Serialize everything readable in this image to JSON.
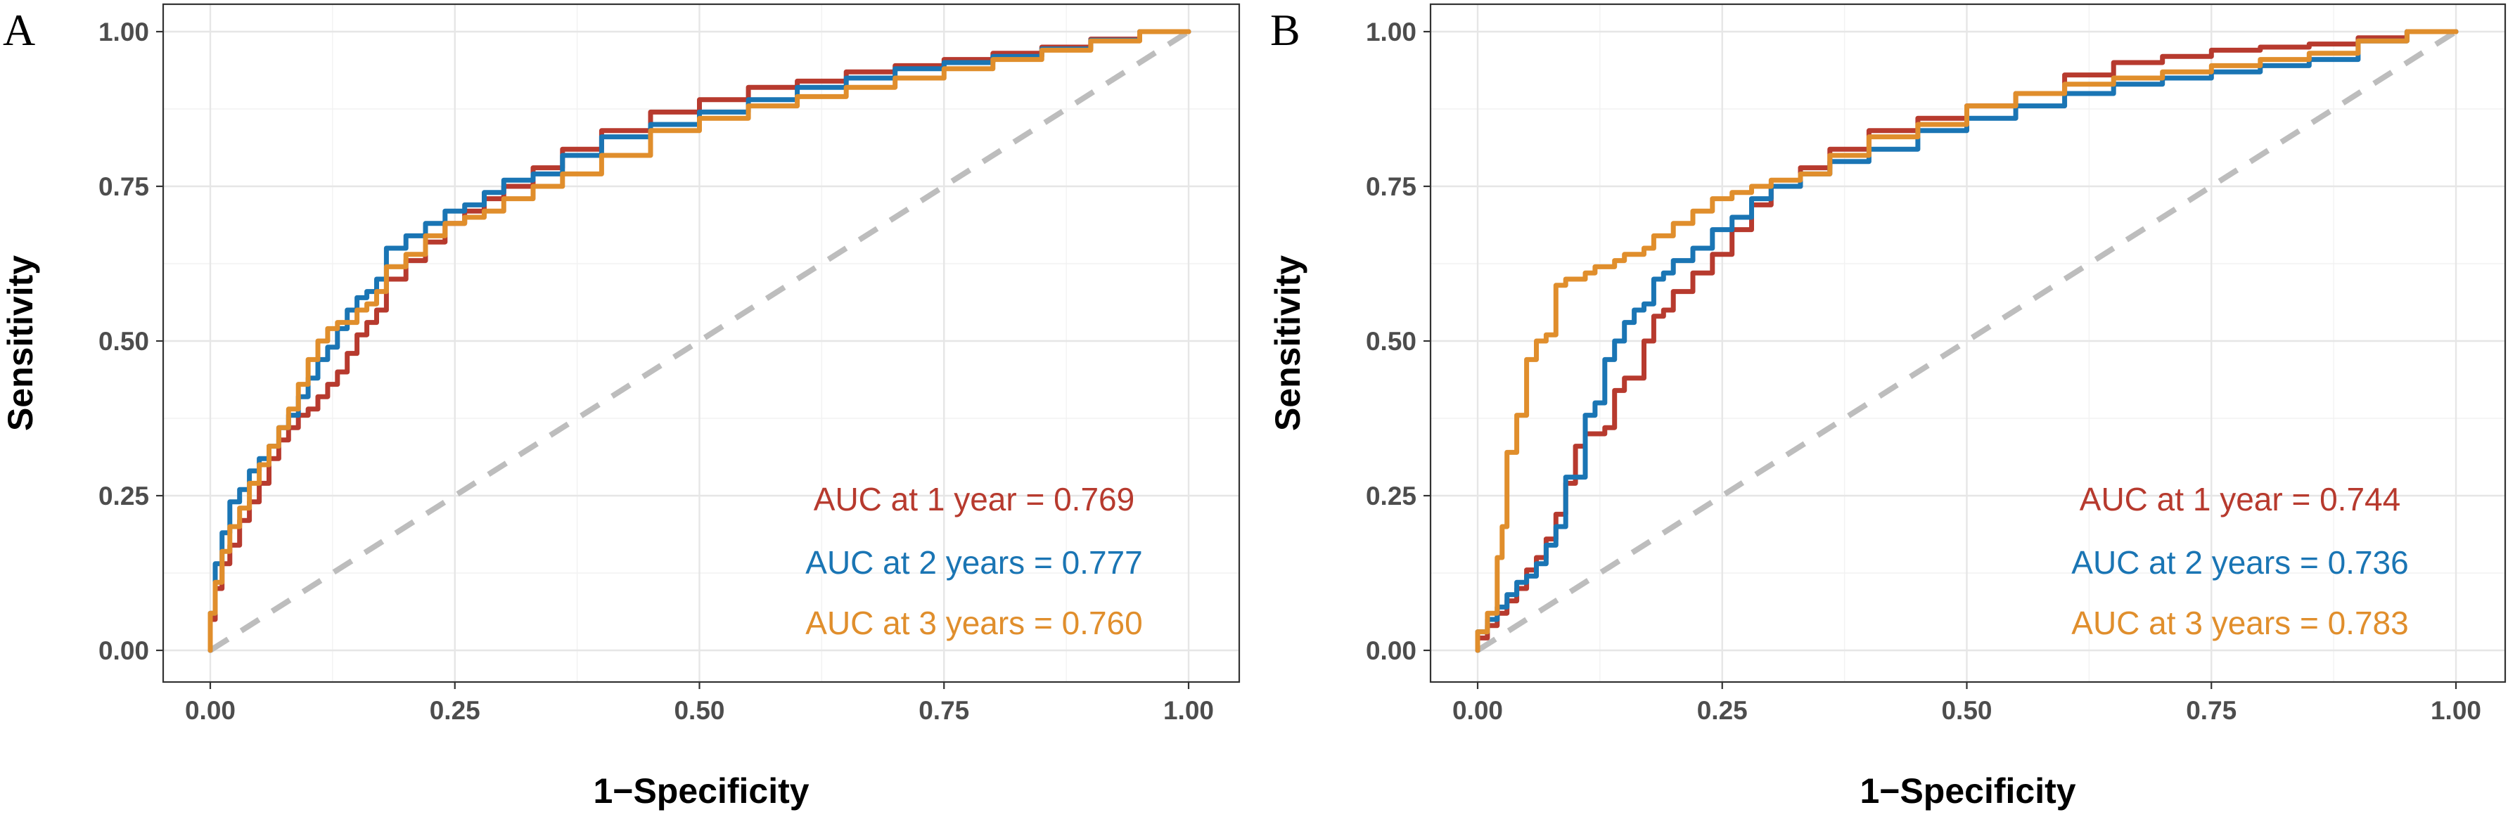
{
  "chart_data": [
    {
      "panel_letter": "A",
      "type": "line",
      "xlabel": "1−Specificity",
      "ylabel": "Sensitivity",
      "xlim": [
        0,
        1
      ],
      "ylim": [
        0,
        1
      ],
      "x_ticks": [
        "0.00",
        "0.25",
        "0.50",
        "0.75",
        "1.00"
      ],
      "y_ticks": [
        "0.00",
        "0.25",
        "0.50",
        "0.75",
        "1.00"
      ],
      "grid": true,
      "reference_line": [
        [
          0,
          0
        ],
        [
          1,
          1
        ]
      ],
      "legend_position": "bottom-right",
      "series": [
        {
          "name": "1 year",
          "color": "#B73A2E",
          "label": "AUC at 1 year = 0.769",
          "auc": 0.769,
          "x": [
            0,
            0.005,
            0.012,
            0.02,
            0.03,
            0.04,
            0.05,
            0.06,
            0.07,
            0.08,
            0.09,
            0.1,
            0.11,
            0.12,
            0.13,
            0.14,
            0.15,
            0.16,
            0.17,
            0.18,
            0.2,
            0.22,
            0.24,
            0.26,
            0.28,
            0.3,
            0.33,
            0.36,
            0.4,
            0.45,
            0.5,
            0.55,
            0.6,
            0.65,
            0.7,
            0.75,
            0.8,
            0.85,
            0.9,
            0.95,
            1.0
          ],
          "y": [
            0,
            0.05,
            0.1,
            0.14,
            0.17,
            0.21,
            0.24,
            0.27,
            0.31,
            0.34,
            0.36,
            0.38,
            0.39,
            0.41,
            0.43,
            0.45,
            0.48,
            0.51,
            0.53,
            0.55,
            0.6,
            0.63,
            0.66,
            0.69,
            0.71,
            0.73,
            0.75,
            0.78,
            0.81,
            0.84,
            0.87,
            0.89,
            0.91,
            0.92,
            0.935,
            0.945,
            0.955,
            0.965,
            0.975,
            0.988,
            1.0
          ]
        },
        {
          "name": "2 years",
          "color": "#1A75B4",
          "label": "AUC at 2 years = 0.777",
          "auc": 0.777,
          "x": [
            0,
            0.005,
            0.012,
            0.02,
            0.03,
            0.04,
            0.05,
            0.06,
            0.07,
            0.08,
            0.09,
            0.1,
            0.11,
            0.12,
            0.13,
            0.14,
            0.15,
            0.16,
            0.17,
            0.18,
            0.2,
            0.22,
            0.24,
            0.26,
            0.28,
            0.3,
            0.33,
            0.36,
            0.4,
            0.45,
            0.5,
            0.55,
            0.6,
            0.65,
            0.7,
            0.75,
            0.8,
            0.85,
            0.9,
            0.95,
            1.0
          ],
          "y": [
            0,
            0.06,
            0.14,
            0.19,
            0.24,
            0.26,
            0.29,
            0.31,
            0.33,
            0.36,
            0.38,
            0.41,
            0.44,
            0.47,
            0.49,
            0.52,
            0.55,
            0.57,
            0.58,
            0.6,
            0.65,
            0.67,
            0.69,
            0.71,
            0.72,
            0.74,
            0.76,
            0.77,
            0.8,
            0.83,
            0.85,
            0.87,
            0.89,
            0.91,
            0.925,
            0.94,
            0.95,
            0.96,
            0.972,
            0.986,
            1.0
          ]
        },
        {
          "name": "3 years",
          "color": "#E08E2C",
          "label": "AUC at 3 years = 0.760",
          "auc": 0.76,
          "x": [
            0,
            0.005,
            0.012,
            0.02,
            0.03,
            0.04,
            0.05,
            0.06,
            0.07,
            0.08,
            0.09,
            0.1,
            0.11,
            0.12,
            0.13,
            0.14,
            0.15,
            0.16,
            0.17,
            0.18,
            0.2,
            0.22,
            0.24,
            0.26,
            0.28,
            0.3,
            0.33,
            0.36,
            0.4,
            0.45,
            0.5,
            0.55,
            0.6,
            0.65,
            0.7,
            0.75,
            0.8,
            0.85,
            0.9,
            0.95,
            1.0
          ],
          "y": [
            0,
            0.06,
            0.11,
            0.16,
            0.2,
            0.23,
            0.27,
            0.3,
            0.33,
            0.36,
            0.39,
            0.43,
            0.47,
            0.5,
            0.52,
            0.53,
            0.53,
            0.55,
            0.56,
            0.58,
            0.62,
            0.64,
            0.67,
            0.69,
            0.7,
            0.71,
            0.73,
            0.75,
            0.77,
            0.8,
            0.84,
            0.86,
            0.88,
            0.895,
            0.91,
            0.925,
            0.94,
            0.955,
            0.97,
            0.985,
            1.0
          ]
        }
      ]
    },
    {
      "panel_letter": "B",
      "type": "line",
      "xlabel": "1−Specificity",
      "ylabel": "Sensitivity",
      "xlim": [
        0,
        1
      ],
      "ylim": [
        0,
        1
      ],
      "x_ticks": [
        "0.00",
        "0.25",
        "0.50",
        "0.75",
        "1.00"
      ],
      "y_ticks": [
        "0.00",
        "0.25",
        "0.50",
        "0.75",
        "1.00"
      ],
      "grid": true,
      "reference_line": [
        [
          0,
          0
        ],
        [
          1,
          1
        ]
      ],
      "legend_position": "bottom-right",
      "series": [
        {
          "name": "1 year",
          "color": "#B73A2E",
          "label": "AUC at 1 year = 0.744",
          "auc": 0.744,
          "x": [
            0,
            0.01,
            0.02,
            0.03,
            0.04,
            0.05,
            0.06,
            0.07,
            0.08,
            0.09,
            0.1,
            0.11,
            0.12,
            0.13,
            0.14,
            0.15,
            0.16,
            0.17,
            0.18,
            0.19,
            0.2,
            0.22,
            0.24,
            0.26,
            0.28,
            0.3,
            0.33,
            0.36,
            0.4,
            0.45,
            0.5,
            0.55,
            0.6,
            0.65,
            0.7,
            0.75,
            0.8,
            0.85,
            0.9,
            0.95,
            1.0
          ],
          "y": [
            0,
            0.02,
            0.04,
            0.06,
            0.08,
            0.1,
            0.13,
            0.15,
            0.18,
            0.22,
            0.27,
            0.33,
            0.35,
            0.35,
            0.36,
            0.42,
            0.44,
            0.44,
            0.5,
            0.54,
            0.55,
            0.58,
            0.61,
            0.64,
            0.68,
            0.72,
            0.75,
            0.78,
            0.81,
            0.84,
            0.86,
            0.88,
            0.9,
            0.93,
            0.95,
            0.96,
            0.97,
            0.975,
            0.98,
            0.99,
            1.0
          ]
        },
        {
          "name": "2 years",
          "color": "#1A75B4",
          "label": "AUC at 2 years = 0.736",
          "auc": 0.736,
          "x": [
            0,
            0.01,
            0.02,
            0.03,
            0.04,
            0.05,
            0.06,
            0.07,
            0.08,
            0.09,
            0.1,
            0.11,
            0.12,
            0.13,
            0.14,
            0.15,
            0.16,
            0.17,
            0.18,
            0.19,
            0.2,
            0.22,
            0.24,
            0.26,
            0.28,
            0.3,
            0.33,
            0.36,
            0.4,
            0.45,
            0.5,
            0.55,
            0.6,
            0.65,
            0.7,
            0.75,
            0.8,
            0.85,
            0.9,
            0.95,
            1.0
          ],
          "y": [
            0,
            0.03,
            0.05,
            0.07,
            0.09,
            0.11,
            0.12,
            0.14,
            0.17,
            0.2,
            0.28,
            0.28,
            0.38,
            0.4,
            0.47,
            0.5,
            0.53,
            0.55,
            0.56,
            0.6,
            0.61,
            0.63,
            0.65,
            0.68,
            0.7,
            0.73,
            0.75,
            0.77,
            0.79,
            0.81,
            0.84,
            0.86,
            0.88,
            0.9,
            0.915,
            0.925,
            0.935,
            0.945,
            0.955,
            0.985,
            1.0
          ]
        },
        {
          "name": "3 years",
          "color": "#E08E2C",
          "label": "AUC at 3 years = 0.783",
          "auc": 0.783,
          "x": [
            0,
            0.01,
            0.02,
            0.025,
            0.03,
            0.04,
            0.05,
            0.06,
            0.07,
            0.08,
            0.09,
            0.1,
            0.11,
            0.12,
            0.13,
            0.14,
            0.15,
            0.16,
            0.17,
            0.18,
            0.2,
            0.22,
            0.24,
            0.26,
            0.28,
            0.3,
            0.33,
            0.36,
            0.4,
            0.45,
            0.5,
            0.55,
            0.6,
            0.65,
            0.7,
            0.75,
            0.8,
            0.85,
            0.9,
            0.95,
            1.0
          ],
          "y": [
            0,
            0.03,
            0.06,
            0.15,
            0.2,
            0.32,
            0.38,
            0.47,
            0.5,
            0.51,
            0.59,
            0.6,
            0.6,
            0.61,
            0.62,
            0.62,
            0.63,
            0.64,
            0.64,
            0.65,
            0.67,
            0.69,
            0.71,
            0.73,
            0.74,
            0.75,
            0.76,
            0.77,
            0.8,
            0.83,
            0.85,
            0.88,
            0.9,
            0.915,
            0.925,
            0.935,
            0.945,
            0.955,
            0.965,
            0.985,
            1.0
          ]
        }
      ]
    }
  ]
}
